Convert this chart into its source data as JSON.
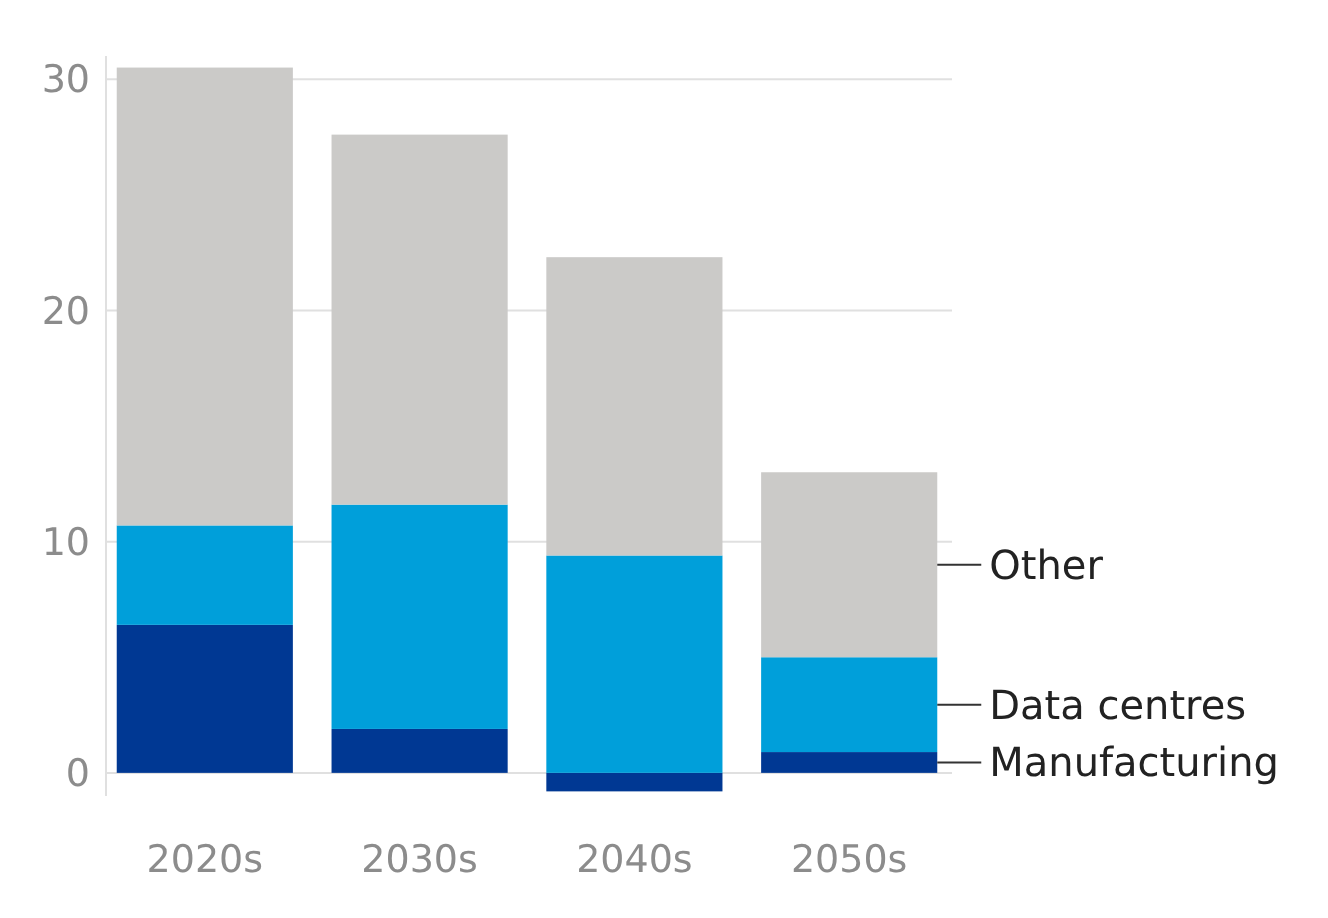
{
  "chart_data": {
    "type": "bar",
    "stacked": true,
    "categories": [
      "2020s",
      "2030s",
      "2040s",
      "2050s"
    ],
    "series": [
      {
        "name": "Manufacturing",
        "color": "#003893",
        "values": [
          6.4,
          1.9,
          -0.8,
          0.9
        ]
      },
      {
        "name": "Data centres",
        "color": "#009fda",
        "values": [
          4.3,
          9.7,
          9.4,
          4.1
        ]
      },
      {
        "name": "Other",
        "color": "#cbcac8",
        "values": [
          19.8,
          16.0,
          12.9,
          8.0
        ]
      }
    ],
    "ylim": [
      -1,
      31
    ],
    "yticks": [
      0,
      10,
      20,
      30
    ],
    "grid": "y",
    "legend": "right"
  }
}
